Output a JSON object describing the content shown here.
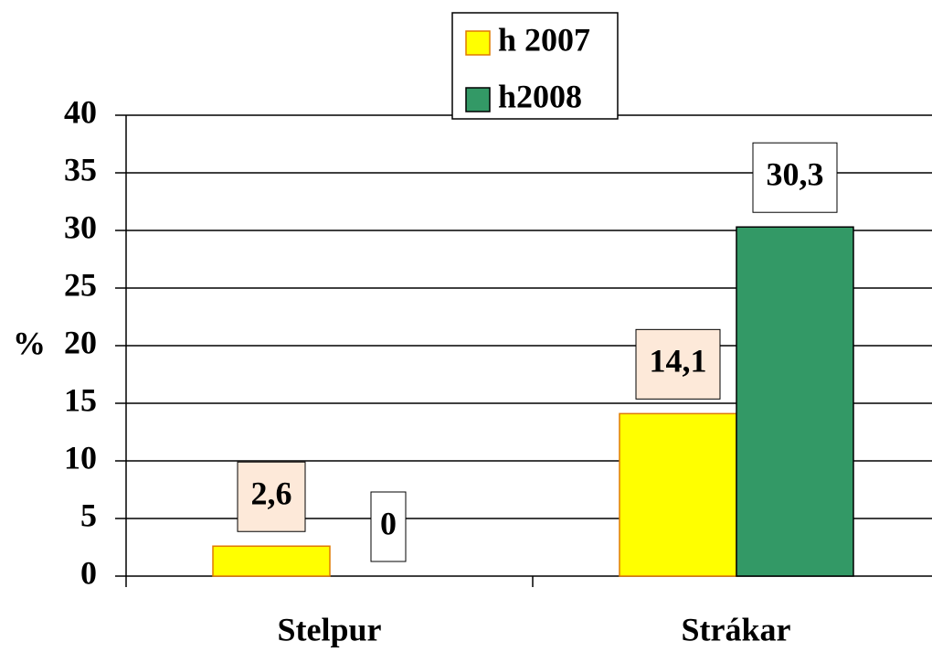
{
  "chart_data": {
    "type": "bar",
    "categories": [
      "Stelpur",
      "Strákar"
    ],
    "y_label": "%",
    "series": [
      {
        "name": "h 2007",
        "color": "#ffff00",
        "values": [
          2.6,
          14.1
        ],
        "value_labels": [
          "2,6",
          "14,1"
        ]
      },
      {
        "name": "h2008",
        "color": "#339966",
        "values": [
          0,
          30.3
        ],
        "value_labels": [
          "0",
          "30,3"
        ]
      }
    ],
    "ylim": [
      0,
      40
    ],
    "yticks": [
      0,
      5,
      10,
      15,
      20,
      25,
      30,
      35,
      40
    ],
    "grid": true,
    "legend": "top"
  }
}
